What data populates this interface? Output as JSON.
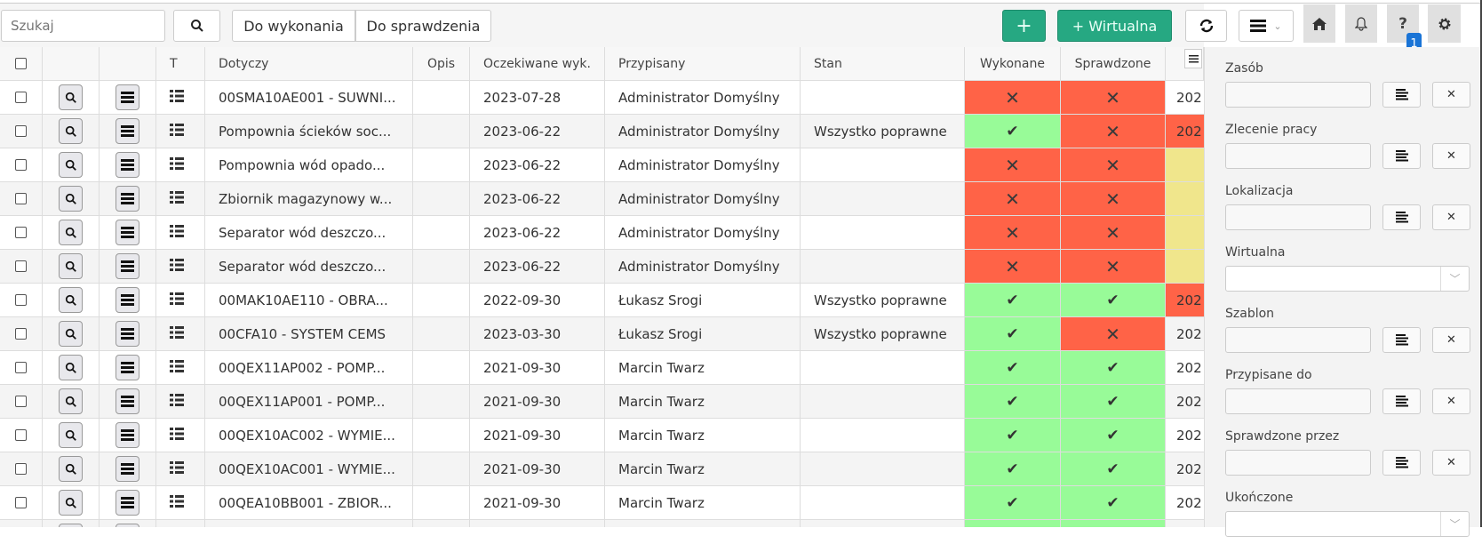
{
  "toolbar": {
    "search_placeholder": "Szukaj",
    "search_icon": "magnifier-icon",
    "tab_todo": "Do wykonania",
    "tab_review": "Do sprawdzenia",
    "add_label": "+",
    "add_virtual_label": "+ Wirtualna",
    "refresh_icon": "refresh-icon",
    "menu_icon": "hamburger-icon",
    "home_icon": "home-icon",
    "bell_icon": "bell-icon",
    "help_label": "?",
    "help_badge": "1",
    "settings_icon": "gear-icon"
  },
  "table": {
    "headers": {
      "t": "T",
      "dotyczy": "Dotyczy",
      "opis": "Opis",
      "oczekiwane": "Oczekiwane wyk.",
      "przypisany": "Przypisany",
      "stan": "Stan",
      "wykonane": "Wykonane",
      "sprawdzone": "Sprawdzone",
      "next": ""
    },
    "colors": {
      "red": "#ff6347",
      "green": "#98fb98",
      "yellow": "#f0e68c"
    },
    "rows": [
      {
        "dotyczy": "00SMA10AE001 - SUWNI...",
        "opis": "",
        "data": "2023-07-28",
        "przypisany": "Administrator Domyślny",
        "stan": "",
        "wykonane": false,
        "sprawdzone": false,
        "next": "202",
        "next_status": "none"
      },
      {
        "dotyczy": "Pompownia ścieków soc...",
        "opis": "",
        "data": "2023-06-22",
        "przypisany": "Administrator Domyślny",
        "stan": "Wszystko poprawne",
        "wykonane": true,
        "sprawdzone": false,
        "next": "202",
        "next_status": "red"
      },
      {
        "dotyczy": "Pompownia wód opado...",
        "opis": "",
        "data": "2023-06-22",
        "przypisany": "Administrator Domyślny",
        "stan": "",
        "wykonane": false,
        "sprawdzone": false,
        "next": "",
        "next_status": "yellow"
      },
      {
        "dotyczy": "Zbiornik magazynowy w...",
        "opis": "",
        "data": "2023-06-22",
        "przypisany": "Administrator Domyślny",
        "stan": "",
        "wykonane": false,
        "sprawdzone": false,
        "next": "",
        "next_status": "yellow"
      },
      {
        "dotyczy": "Separator wód deszczo...",
        "opis": "",
        "data": "2023-06-22",
        "przypisany": "Administrator Domyślny",
        "stan": "",
        "wykonane": false,
        "sprawdzone": false,
        "next": "",
        "next_status": "yellow"
      },
      {
        "dotyczy": "Separator wód deszczo...",
        "opis": "",
        "data": "2023-06-22",
        "przypisany": "Administrator Domyślny",
        "stan": "",
        "wykonane": false,
        "sprawdzone": false,
        "next": "",
        "next_status": "yellow"
      },
      {
        "dotyczy": "00MAK10AE110 - OBRA...",
        "opis": "",
        "data": "2022-09-30",
        "przypisany": "Łukasz Srogi",
        "stan": "Wszystko poprawne",
        "wykonane": true,
        "sprawdzone": true,
        "next": "202",
        "next_status": "red"
      },
      {
        "dotyczy": "00CFA10 - SYSTEM CEMS",
        "opis": "",
        "data": "2023-03-30",
        "przypisany": "Łukasz Srogi",
        "stan": "Wszystko poprawne",
        "wykonane": true,
        "sprawdzone": false,
        "next": "202",
        "next_status": "none"
      },
      {
        "dotyczy": "00QEX11AP002 - POMP...",
        "opis": "",
        "data": "2021-09-30",
        "przypisany": "Marcin Twarz",
        "stan": "",
        "wykonane": true,
        "sprawdzone": true,
        "next": "202",
        "next_status": "none"
      },
      {
        "dotyczy": "00QEX11AP001 - POMP...",
        "opis": "",
        "data": "2021-09-30",
        "przypisany": "Marcin Twarz",
        "stan": "",
        "wykonane": true,
        "sprawdzone": true,
        "next": "202",
        "next_status": "none"
      },
      {
        "dotyczy": "00QEX10AC002 - WYMIE...",
        "opis": "",
        "data": "2021-09-30",
        "przypisany": "Marcin Twarz",
        "stan": "",
        "wykonane": true,
        "sprawdzone": true,
        "next": "202",
        "next_status": "none"
      },
      {
        "dotyczy": "00QEX10AC001 - WYMIE...",
        "opis": "",
        "data": "2021-09-30",
        "przypisany": "Marcin Twarz",
        "stan": "",
        "wykonane": true,
        "sprawdzone": true,
        "next": "202",
        "next_status": "none"
      },
      {
        "dotyczy": "00QEA10BB001 - ZBIOR...",
        "opis": "",
        "data": "2021-09-30",
        "przypisany": "Marcin Twarz",
        "stan": "",
        "wykonane": true,
        "sprawdzone": true,
        "next": "202",
        "next_status": "none"
      },
      {
        "dotyczy": "",
        "opis": "",
        "data": "",
        "przypisany": "",
        "stan": "",
        "wykonane": true,
        "sprawdzone": true,
        "next": "",
        "next_status": "none"
      }
    ]
  },
  "filters": [
    {
      "label": "Zasób",
      "type": "lookup",
      "value": ""
    },
    {
      "label": "Zlecenie pracy",
      "type": "lookup",
      "value": ""
    },
    {
      "label": "Lokalizacja",
      "type": "lookup",
      "value": ""
    },
    {
      "label": "Wirtualna",
      "type": "select",
      "value": ""
    },
    {
      "label": "Szablon",
      "type": "lookup",
      "value": ""
    },
    {
      "label": "Przypisane do",
      "type": "lookup",
      "value": ""
    },
    {
      "label": "Sprawdzone przez",
      "type": "lookup",
      "value": ""
    },
    {
      "label": "Ukończone",
      "type": "select",
      "value": ""
    }
  ]
}
